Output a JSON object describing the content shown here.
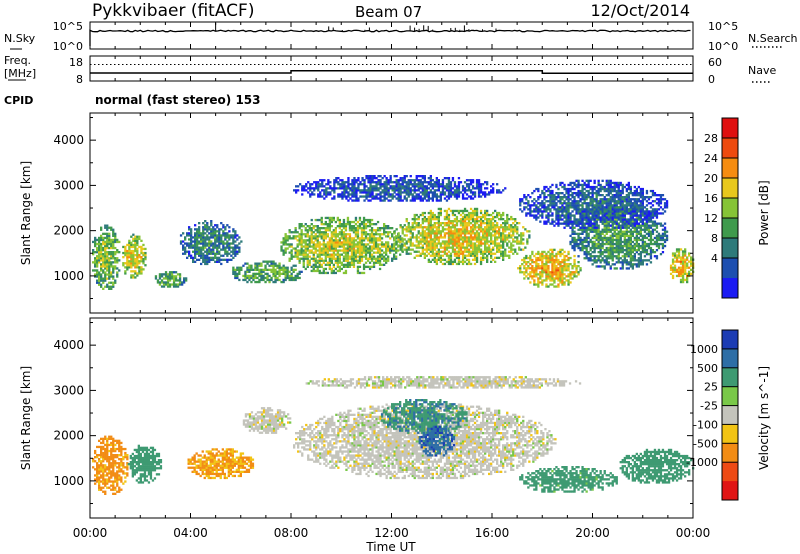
{
  "header": {
    "title": "Pykkvibaer (fitACF)",
    "beam": "Beam 07",
    "date": "12/Oct/2014",
    "cpid_text": "normal (fast stereo) 153"
  },
  "noise_panel": {
    "left_label": "N.Sky",
    "right_label": "N.Search",
    "left_ticks": [
      "10^5",
      "10^0"
    ],
    "right_ticks": [
      "10^5",
      "10^0"
    ]
  },
  "freq_panel": {
    "left_label_line1": "Freq.",
    "left_label_line2": "[MHz]",
    "right_label": "Nave",
    "left_ticks": [
      "18",
      "8"
    ],
    "right_ticks": [
      "60",
      "0"
    ],
    "freq_segments": [
      {
        "start": 0.0,
        "end": 8.0,
        "value": 10.5
      },
      {
        "start": 8.0,
        "end": 18.0,
        "value": 11.6
      },
      {
        "start": 18.0,
        "end": 24.0,
        "value": 10.4
      }
    ],
    "nave_level": 45
  },
  "cpid_label": "CPID",
  "x_axis": {
    "label": "Time UT",
    "range": [
      0,
      24
    ],
    "ticks": [
      "00:00",
      "04:00",
      "08:00",
      "12:00",
      "16:00",
      "20:00",
      "00:00"
    ]
  },
  "y_axis": {
    "label": "Slant Range [km]",
    "range": [
      180,
      4600
    ],
    "ticks": [
      "1000",
      "2000",
      "3000",
      "4000"
    ]
  },
  "power_colorbar": {
    "label": "Power [dB]",
    "ticks": [
      "4",
      "8",
      "12",
      "16",
      "20",
      "24",
      "28"
    ],
    "colors": [
      "#1b1bf2",
      "#1d4fb0",
      "#2e7a7a",
      "#3f9a4c",
      "#86c436",
      "#e8c81c",
      "#f58c10",
      "#ee4a0e",
      "#e01010"
    ]
  },
  "velocity_colorbar": {
    "label": "Velocity [m s^-1]",
    "ticks": [
      "1000",
      "500",
      "25",
      "-25",
      "-100",
      "-500",
      "-1000"
    ],
    "colors": [
      "#1c3cb4",
      "#2e6ea6",
      "#3e9a72",
      "#79c848",
      "#c4c4bc",
      "#f2c414",
      "#f28c14",
      "#ee4a14",
      "#e01414"
    ]
  },
  "chart_data": [
    {
      "type": "heatmap",
      "title": "Power",
      "xlabel": "Time UT",
      "ylabel": "Slant Range [km]",
      "xlim": [
        0,
        24
      ],
      "ylim": [
        180,
        4600
      ],
      "colorbar": "Power [dB]",
      "regions": [
        {
          "t0": 0.0,
          "t1": 1.2,
          "r0": 650,
          "r1": 2100,
          "value": 18
        },
        {
          "t0": 1.2,
          "t1": 2.2,
          "r0": 900,
          "r1": 1900,
          "value": 22
        },
        {
          "t0": 2.5,
          "t1": 3.8,
          "r0": 700,
          "r1": 1100,
          "value": 16
        },
        {
          "t0": 3.5,
          "t1": 6.0,
          "r0": 1200,
          "r1": 2200,
          "value": 12
        },
        {
          "t0": 5.5,
          "t1": 8.5,
          "r0": 800,
          "r1": 1300,
          "value": 16
        },
        {
          "t0": 7.5,
          "t1": 12.5,
          "r0": 1000,
          "r1": 2300,
          "value": 20
        },
        {
          "t0": 12.0,
          "t1": 17.5,
          "r0": 1200,
          "r1": 2500,
          "value": 22
        },
        {
          "t0": 17.0,
          "t1": 19.5,
          "r0": 700,
          "r1": 1600,
          "value": 24
        },
        {
          "t0": 19.0,
          "t1": 23.0,
          "r0": 1100,
          "r1": 2600,
          "value": 14
        },
        {
          "t0": 23.0,
          "t1": 24.0,
          "r0": 800,
          "r1": 1600,
          "value": 24
        },
        {
          "t0": 8.0,
          "t1": 16.5,
          "r0": 2600,
          "r1": 3200,
          "value": 8
        },
        {
          "t0": 17.0,
          "t1": 23.0,
          "r0": 2000,
          "r1": 3100,
          "value": 9
        }
      ]
    },
    {
      "type": "heatmap",
      "title": "Velocity",
      "xlabel": "Time UT",
      "ylabel": "Slant Range [km]",
      "xlim": [
        0,
        24
      ],
      "ylim": [
        180,
        4600
      ],
      "colorbar": "Velocity [m s^-1]",
      "regions": [
        {
          "t0": 0.0,
          "t1": 1.5,
          "r0": 650,
          "r1": 2000,
          "value": -150
        },
        {
          "t0": 1.5,
          "t1": 2.8,
          "r0": 900,
          "r1": 1800,
          "value": 250
        },
        {
          "t0": 3.8,
          "t1": 6.5,
          "r0": 1000,
          "r1": 1700,
          "value": -120
        },
        {
          "t0": 6.0,
          "t1": 8.0,
          "r0": 2000,
          "r1": 2600,
          "value": 0
        },
        {
          "t0": 8.0,
          "t1": 18.5,
          "r0": 1000,
          "r1": 2700,
          "value": 0
        },
        {
          "t0": 11.5,
          "t1": 15.0,
          "r0": 2000,
          "r1": 2800,
          "value": 400
        },
        {
          "t0": 13.0,
          "t1": 14.5,
          "r0": 1500,
          "r1": 2200,
          "value": 800
        },
        {
          "t0": 17.0,
          "t1": 21.0,
          "r0": 700,
          "r1": 1300,
          "value": 200
        },
        {
          "t0": 21.0,
          "t1": 24.0,
          "r0": 900,
          "r1": 1700,
          "value": 300
        },
        {
          "t0": 8.5,
          "t1": 19.5,
          "r0": 3000,
          "r1": 3300,
          "value": 0
        }
      ]
    }
  ]
}
